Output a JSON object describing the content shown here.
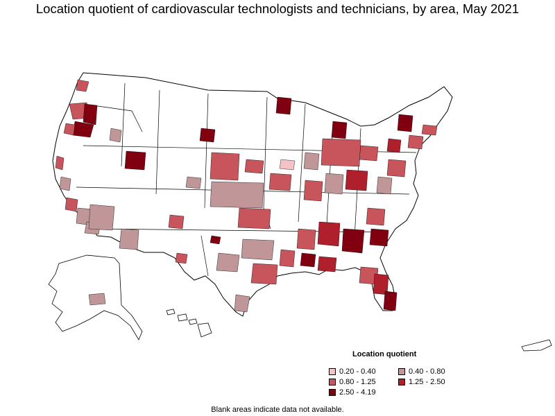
{
  "title": "Location quotient of cardiovascular technologists and technicians, by area, May 2021",
  "legend": {
    "title": "Location quotient",
    "items": [
      {
        "label": "0.20 - 0.40",
        "color": "#f2c4c8"
      },
      {
        "label": "0.40 - 0.80",
        "color": "#c09698"
      },
      {
        "label": "0.80 - 1.25",
        "color": "#c8545c"
      },
      {
        "label": "1.25 - 2.50",
        "color": "#b0202c"
      },
      {
        "label": "2.50 - 4.19",
        "color": "#800010"
      }
    ]
  },
  "note": "Blank areas indicate data not available.",
  "colors": {
    "border": "#000000",
    "no_data": "#ffffff"
  }
}
